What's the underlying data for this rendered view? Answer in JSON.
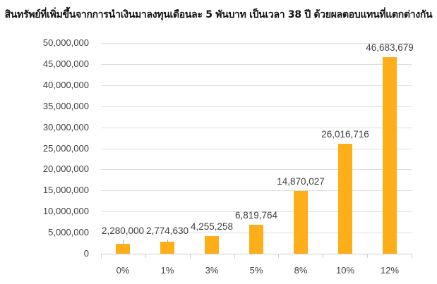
{
  "title": "สินทรัพย์ที่เพิ่มขึ้นจากการนำเงินมาลงทุนเดือนละ 5 พันบาท เป็นเวลา 38 ปี ด้วยผลตอบแทนที่แตกต่างกัน",
  "colors": {
    "bar": "#FDAE19",
    "grid": "#DEDEDE",
    "text": "#404040"
  },
  "chart_data": {
    "type": "bar",
    "title": "สินทรัพย์ที่เพิ่มขึ้นจากการนำเงินมาลงทุนเดือนละ 5 พันบาท เป็นเวลา 38 ปี ด้วยผลตอบแทนที่แตกต่างกัน",
    "xlabel": "",
    "ylabel": "",
    "categories": [
      "0%",
      "1%",
      "3%",
      "5%",
      "8%",
      "10%",
      "12%"
    ],
    "values": [
      2280000,
      2774630,
      4255258,
      6819764,
      14870027,
      26016716,
      46683679
    ],
    "value_labels": [
      "2,280,000",
      "2,774,630",
      "4,255,258",
      "6,819,764",
      "14,870,027",
      "26,016,716",
      "46,683,679"
    ],
    "ylim": [
      0,
      50000000
    ],
    "yticks": [
      0,
      5000000,
      10000000,
      15000000,
      20000000,
      25000000,
      30000000,
      35000000,
      40000000,
      45000000,
      50000000
    ],
    "ytick_labels": [
      "0",
      "5,000,000",
      "10,000,000",
      "15,000,000",
      "20,000,000",
      "25,000,000",
      "30,000,000",
      "35,000,000",
      "40,000,000",
      "45,000,000",
      "50,000,000"
    ],
    "grid": true,
    "legend": null
  }
}
